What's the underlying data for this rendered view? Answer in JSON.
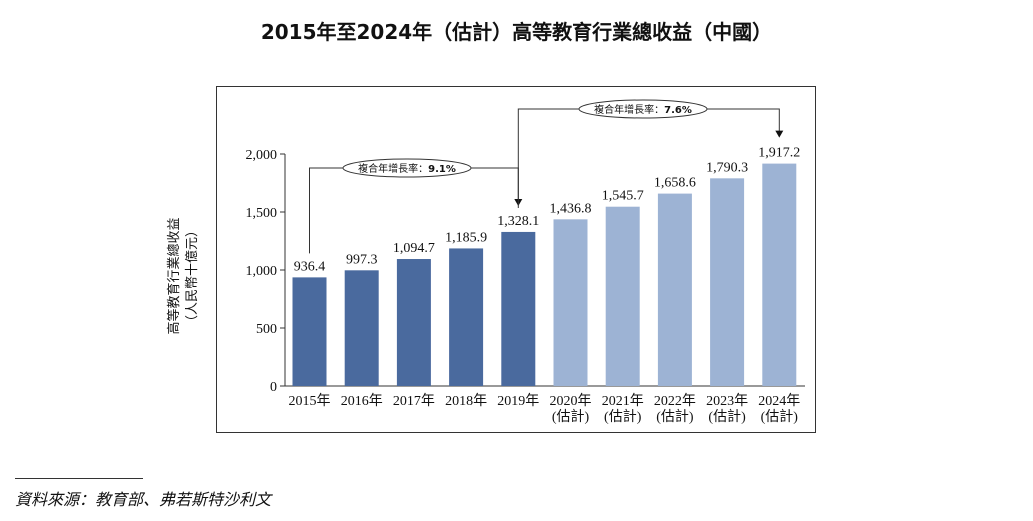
{
  "title": "2015年至2024年（估計）高等教育行業總收益（中國）",
  "source": "資料來源：教育部、弗若斯特沙利文",
  "chart_data": {
    "type": "bar",
    "ylabel_lines": [
      "高等教育行業總收益",
      "（人民幣十億元）"
    ],
    "ylim": [
      0,
      2000
    ],
    "yticks": [
      "0",
      "500",
      "1,000",
      "1,500",
      "2,000"
    ],
    "ytick_values": [
      0,
      500,
      1000,
      1500,
      2000
    ],
    "categories": [
      [
        "2015年"
      ],
      [
        "2016年"
      ],
      [
        "2017年"
      ],
      [
        "2018年"
      ],
      [
        "2019年"
      ],
      [
        "2020年",
        "(估計)"
      ],
      [
        "2021年",
        "(估計)"
      ],
      [
        "2022年",
        "(估計)"
      ],
      [
        "2023年",
        "(估計)"
      ],
      [
        "2024年",
        "(估計)"
      ]
    ],
    "values": [
      936.4,
      997.3,
      1094.7,
      1185.9,
      1328.1,
      1436.8,
      1545.7,
      1658.6,
      1790.3,
      1917.2
    ],
    "value_labels": [
      "936.4",
      "997.3",
      "1,094.7",
      "1,185.9",
      "1,328.1",
      "1,436.8",
      "1,545.7",
      "1,658.6",
      "1,790.3",
      "1,917.2"
    ],
    "estimated": [
      false,
      false,
      false,
      false,
      false,
      true,
      true,
      true,
      true,
      true
    ],
    "colors": {
      "actual": "#4a6a9e",
      "estimated": "#9db3d4"
    },
    "cagr_annotations": [
      {
        "label": "複合年增長率：",
        "value": "9.1%",
        "from_index": 0,
        "to_index": 4
      },
      {
        "label": "複合年增長率：",
        "value": "7.6%",
        "from_index": 4,
        "to_index": 9
      }
    ]
  }
}
